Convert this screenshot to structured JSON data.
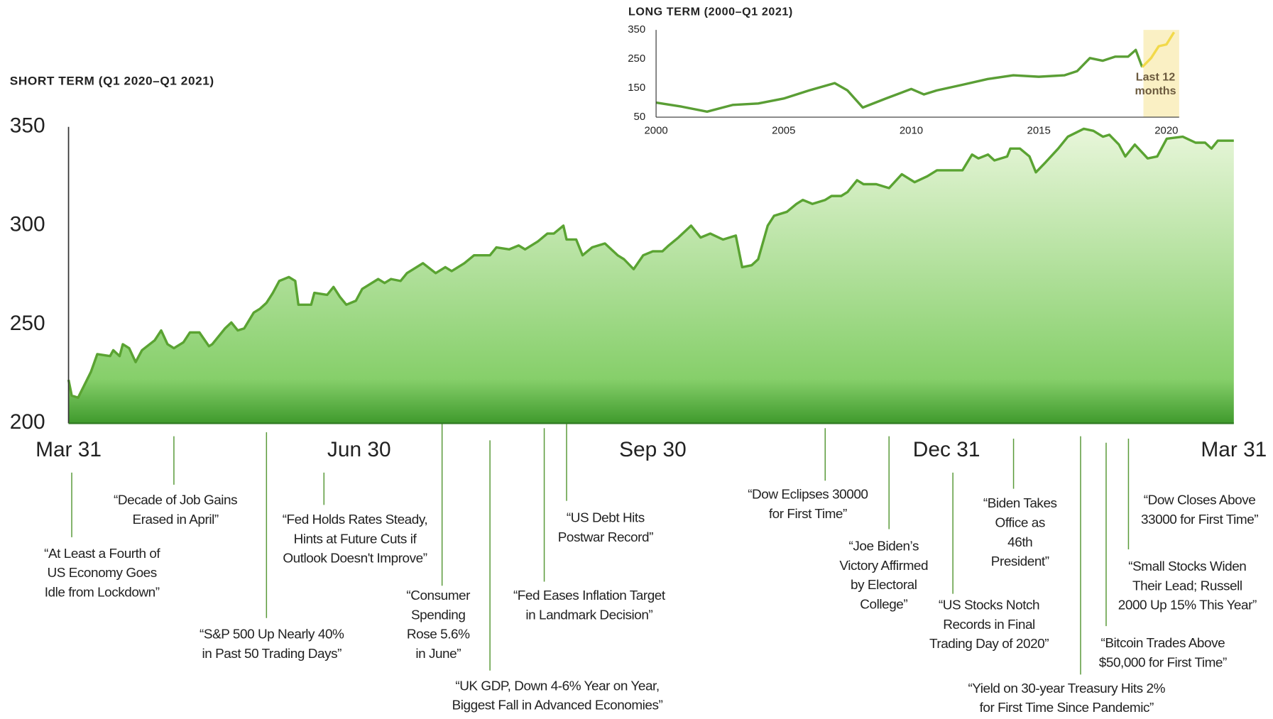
{
  "chart_data": [
    {
      "type": "area",
      "title": "SHORT TERM (Q1 2020–Q1 2021)",
      "color": "#5aa332",
      "xlim": [
        0,
        365
      ],
      "xticks": [
        {
          "value": 0,
          "label": "Mar 31"
        },
        {
          "value": 91,
          "label": "Jun 30"
        },
        {
          "value": 183,
          "label": "Sep 30"
        },
        {
          "value": 275,
          "label": "Dec 31"
        },
        {
          "value": 365,
          "label": "Mar 31"
        }
      ],
      "ylim": [
        200,
        350
      ],
      "yticks": [
        200,
        250,
        300,
        350
      ],
      "x": [
        0,
        1,
        3,
        7,
        9,
        13,
        14,
        16,
        17,
        19,
        21,
        23,
        27,
        29,
        31,
        33,
        36,
        38,
        41,
        44,
        45,
        49,
        51,
        53,
        55,
        58,
        60,
        62,
        64,
        66,
        69,
        71,
        72,
        76,
        77,
        81,
        83,
        85,
        87,
        90,
        92,
        97,
        99,
        101,
        104,
        106,
        111,
        115,
        118,
        120,
        124,
        127,
        132,
        134,
        138,
        141,
        143,
        147,
        150,
        152,
        155,
        156,
        159,
        161,
        164,
        168,
        172,
        174,
        177,
        180,
        183,
        186,
        188,
        191,
        195,
        198,
        201,
        205,
        209,
        211,
        214,
        216,
        219,
        221,
        225,
        228,
        230,
        233,
        237,
        239,
        242,
        244,
        247,
        249,
        253,
        257,
        261,
        265,
        269,
        272,
        276,
        280,
        283,
        285,
        288,
        290,
        294,
        295,
        298,
        301,
        303,
        306,
        310,
        313,
        318,
        321,
        324,
        326,
        329,
        331,
        334,
        338,
        341,
        344,
        349,
        353,
        356,
        358,
        360,
        365
      ],
      "values": [
        222,
        214,
        213,
        226,
        235,
        234,
        237,
        234,
        240,
        238,
        231,
        237,
        242,
        247,
        240,
        238,
        241,
        246,
        246,
        239,
        240,
        248,
        251,
        247,
        248,
        256,
        258,
        261,
        266,
        272,
        274,
        272,
        260,
        260,
        266,
        265,
        269,
        264,
        260,
        262,
        268,
        273,
        271,
        273,
        272,
        276,
        281,
        276,
        279,
        277,
        281,
        285,
        285,
        289,
        288,
        290,
        288,
        292,
        296,
        296,
        300,
        293,
        293,
        285,
        289,
        291,
        285,
        283,
        278,
        285,
        287,
        287,
        290,
        294,
        300,
        294,
        296,
        293,
        295,
        279,
        280,
        283,
        300,
        305,
        307,
        311,
        313,
        311,
        313,
        315,
        315,
        317,
        323,
        321,
        321,
        319,
        326,
        322,
        325,
        328,
        328,
        328,
        336,
        334,
        336,
        333,
        335,
        339,
        339,
        335,
        327,
        332,
        339,
        345,
        349,
        348,
        345,
        346,
        341,
        335,
        341,
        334,
        335,
        344,
        345,
        342,
        342,
        339,
        343,
        343
      ],
      "annotations": [
        {
          "x": 1,
          "text": [
            "“At Least a Fourth of",
            "US Economy Goes",
            "Idle from Lockdown”"
          ]
        },
        {
          "x": 33,
          "text": [
            "“Decade of Job Gains",
            "Erased in April”"
          ]
        },
        {
          "x": 62,
          "text": [
            "“S&P 500 Up Nearly 40%",
            "in Past 50 Trading Days”"
          ]
        },
        {
          "x": 80,
          "text": [
            "“Fed Holds Rates Steady,",
            "Hints at Future Cuts if",
            "Outlook Doesn't Improve”"
          ]
        },
        {
          "x": 117,
          "text": [
            "“Consumer",
            "Spending",
            "Rose 5.6%",
            "in June”"
          ]
        },
        {
          "x": 132,
          "text": [
            "“UK GDP, Down 4-6% Year on Year,",
            "Biggest Fall in Advanced Economies”"
          ]
        },
        {
          "x": 149,
          "text": [
            "“Fed Eases Inflation Target",
            "in Landmark Decision”"
          ]
        },
        {
          "x": 156,
          "text": [
            "“US Debt Hits",
            "Postwar Record”"
          ]
        },
        {
          "x": 237,
          "text": [
            "“Dow Eclipses 30000",
            "for First Time”"
          ]
        },
        {
          "x": 257,
          "text": [
            "“Joe Biden’s",
            "Victory Affirmed",
            "by Electoral",
            "College”"
          ]
        },
        {
          "x": 277,
          "text": [
            "“US Stocks Notch",
            "Records in Final",
            "Trading Day of 2020”"
          ]
        },
        {
          "x": 296,
          "text": [
            "“Biden Takes",
            "Office as",
            "46th",
            "President”"
          ]
        },
        {
          "x": 317,
          "text": [
            "“Yield on 30-year Treasury Hits 2%",
            "for First Time Since Pandemic”"
          ]
        },
        {
          "x": 325,
          "text": [
            "“Bitcoin Trades Above",
            "$50,000 for First Time”"
          ]
        },
        {
          "x": 332,
          "text": [
            "“Small Stocks Widen",
            "Their Lead; Russell",
            "2000 Up 15% This Year”"
          ]
        },
        {
          "text": [
            "“Dow Closes Above",
            "33000 for First Time”"
          ]
        }
      ]
    },
    {
      "type": "line",
      "title": "LONG TERM (2000–Q1 2021)",
      "xlim": [
        2000,
        2020.5
      ],
      "xticks": [
        2000,
        2005,
        2010,
        2015,
        2020
      ],
      "ylim": [
        50,
        350
      ],
      "yticks": [
        50,
        150,
        250,
        350
      ],
      "highlight": {
        "xlim": [
          2019.1,
          2020.5
        ],
        "label": [
          "Last 12",
          "months"
        ],
        "color": "#faf0c4"
      },
      "series": [
        {
          "color": "#5a9e35",
          "x": [
            2000,
            2001,
            2002,
            2003,
            2004,
            2005,
            2006,
            2007,
            2007.5,
            2008.1,
            2009,
            2010,
            2010.5,
            2011,
            2012,
            2013,
            2014,
            2015,
            2016,
            2016.5,
            2017,
            2017.5,
            2018,
            2018.5,
            2018.8,
            2019.05
          ],
          "values": [
            100,
            86,
            69,
            92,
            97,
            114,
            142,
            167,
            142,
            83,
            114,
            147,
            128,
            142,
            161,
            181,
            194,
            189,
            194,
            208,
            253,
            244,
            258,
            258,
            281,
            222
          ]
        },
        {
          "color": "#f2d94a",
          "x": [
            2019.05,
            2019.4,
            2019.7,
            2020,
            2020.3
          ],
          "values": [
            222,
            253,
            294,
            300,
            342
          ]
        }
      ]
    }
  ]
}
